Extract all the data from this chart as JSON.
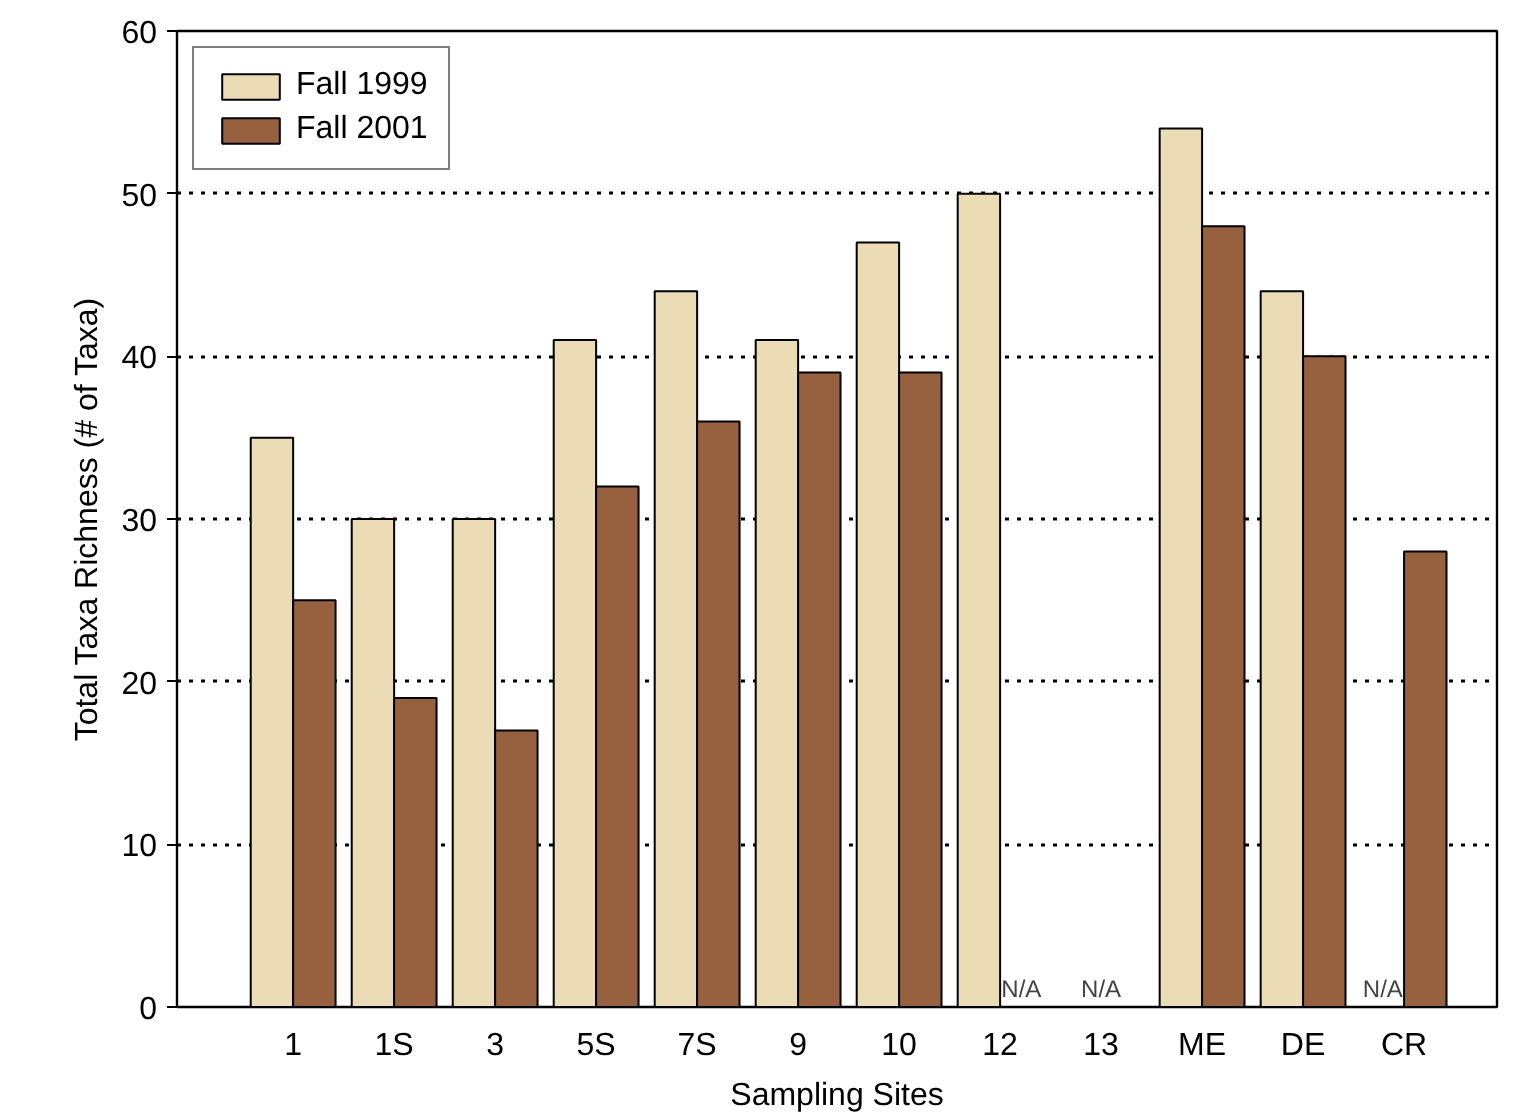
{
  "chart_data": {
    "type": "bar",
    "xlabel": "Sampling Sites",
    "ylabel": "Total Taxa Richness (# of Taxa)",
    "categories": [
      "1",
      "1S",
      "3",
      "5S",
      "7S",
      "9",
      "10",
      "12",
      "13",
      "ME",
      "DE",
      "CR"
    ],
    "series": [
      {
        "name": "Fall 1999",
        "color": "#ebdcb5",
        "values": [
          35,
          30,
          30,
          41,
          44,
          41,
          47,
          50,
          null,
          54,
          44,
          null
        ]
      },
      {
        "name": "Fall 2001",
        "color": "#97613f",
        "values": [
          25,
          19,
          17,
          32,
          36,
          39,
          39,
          null,
          null,
          48,
          40,
          28
        ]
      }
    ],
    "ylim": [
      0,
      60
    ],
    "yticks": [
      0,
      10,
      20,
      30,
      40,
      50,
      60
    ],
    "grid": "y",
    "legend": "top left",
    "annotations": [
      {
        "text": "N/A",
        "x": "12",
        "y": 0
      },
      "N/A",
      {
        "text": "N/A",
        "x": "CR",
        "y": 0
      }
    ]
  }
}
